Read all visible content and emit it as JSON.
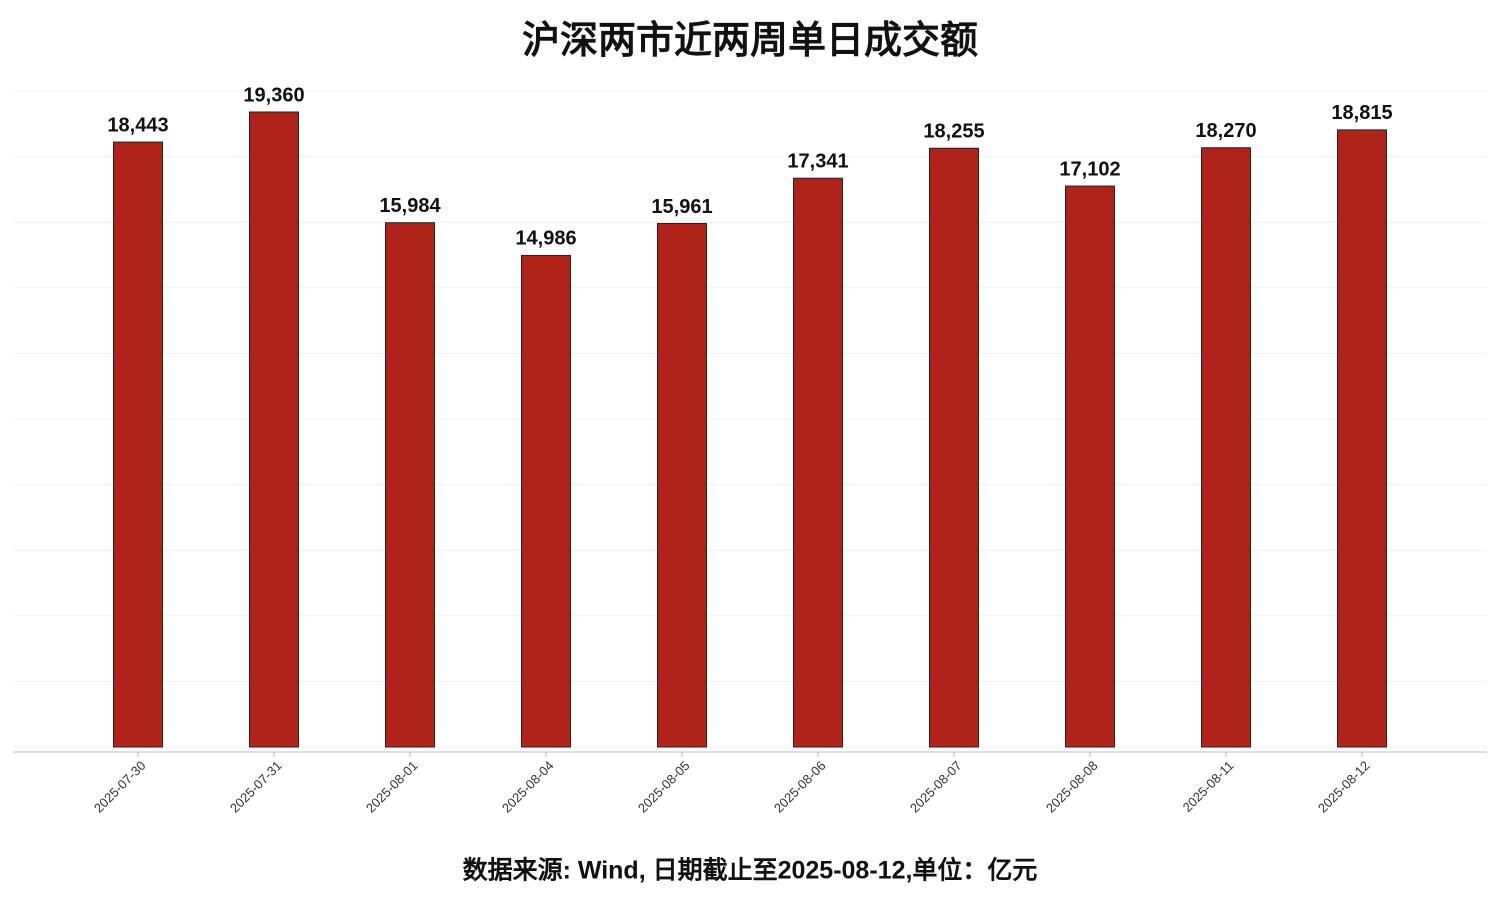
{
  "chart_data": {
    "type": "bar",
    "title": "沪深两市近两周单日成交额",
    "categories": [
      "2025-07-30",
      "2025-07-31",
      "2025-08-01",
      "2025-08-04",
      "2025-08-05",
      "2025-08-06",
      "2025-08-07",
      "2025-08-08",
      "2025-08-11",
      "2025-08-12"
    ],
    "values": [
      18443,
      19360,
      15984,
      14986,
      15961,
      17341,
      18255,
      17102,
      18270,
      18815
    ],
    "value_labels": [
      "18,443",
      "19,360",
      "15,984",
      "14,986",
      "15,961",
      "17,341",
      "18,255",
      "17,102",
      "18,270",
      "18,815"
    ],
    "color": "#b0231a",
    "ylim": [
      0,
      20000
    ],
    "yticks": [
      0,
      2000,
      4000,
      6000,
      8000,
      10000,
      12000,
      14000,
      16000,
      18000,
      20000
    ],
    "grid": true,
    "footnote": "数据来源: Wind, 日期截止至2025-08-12,单位：亿元"
  }
}
